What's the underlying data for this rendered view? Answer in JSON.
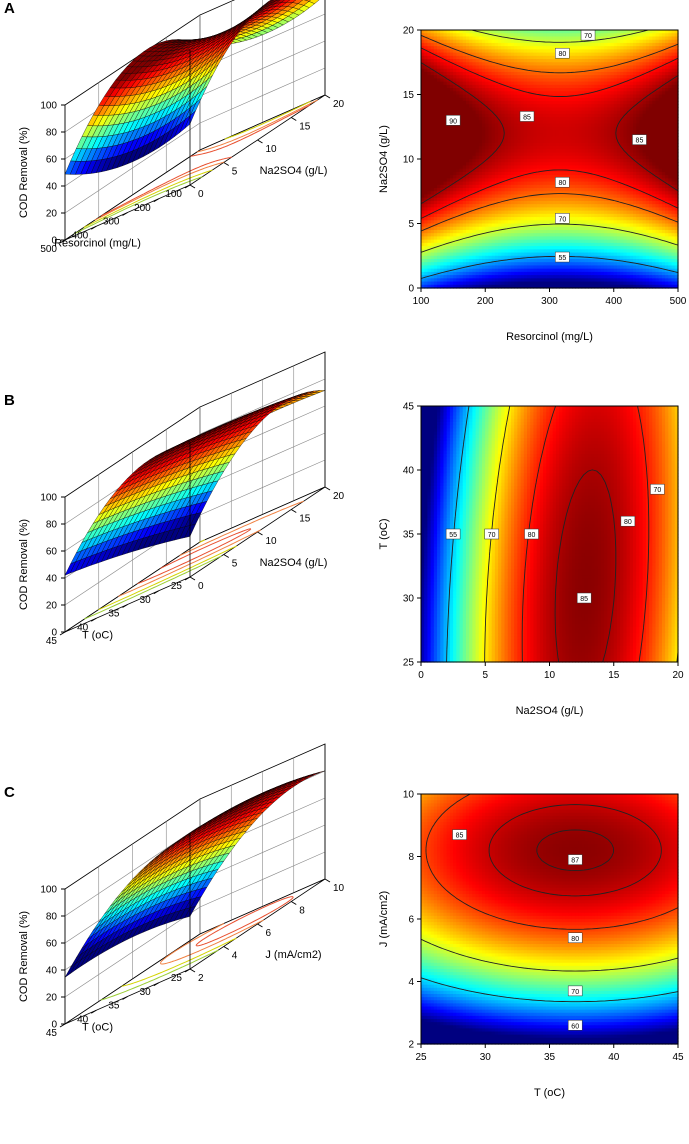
{
  "colors": {
    "axis": "#000000",
    "grid": "#888888",
    "contour": "#222222"
  },
  "chart_data": [
    {
      "panel": "A",
      "type": "surface3d",
      "zlabel": "COD Removal (%)",
      "zticks": [
        "0",
        "20",
        "40",
        "60",
        "80",
        "100"
      ],
      "xlabel": "Resorcinol (mg/L)",
      "xticks": [
        "500",
        "400",
        "300",
        "200",
        "100"
      ],
      "ylabel": "Na2SO4 (g/L)",
      "yticks": [
        "0",
        "5",
        "10",
        "15",
        "20"
      ],
      "xrange": [
        100,
        500
      ],
      "yrange": [
        0,
        20
      ],
      "zrange": [
        0,
        100
      ],
      "model": "A"
    },
    {
      "panel": "A",
      "type": "contour",
      "xlabel": "Resorcinol (mg/L)",
      "ylabel": "Na2SO4 (g/L)",
      "xticks": [
        "100",
        "200",
        "300",
        "400",
        "500"
      ],
      "yticks": [
        "0",
        "5",
        "10",
        "15",
        "20"
      ],
      "xrange": [
        100,
        500
      ],
      "yrange": [
        0,
        20
      ],
      "contour_labels": [
        "90",
        "85",
        "85",
        "80",
        "80",
        "70",
        "70",
        "55"
      ],
      "model": "A"
    },
    {
      "panel": "B",
      "type": "surface3d",
      "zlabel": "COD Removal (%)",
      "zticks": [
        "0",
        "20",
        "40",
        "60",
        "80",
        "100"
      ],
      "xlabel": "T (oC)",
      "xticks": [
        "45",
        "40",
        "35",
        "30",
        "25"
      ],
      "ylabel": "Na2SO4 (g/L)",
      "yticks": [
        "0",
        "5",
        "10",
        "15",
        "20"
      ],
      "xrange": [
        25,
        45
      ],
      "yrange": [
        0,
        20
      ],
      "zrange": [
        0,
        100
      ],
      "model": "B"
    },
    {
      "panel": "B",
      "type": "contour",
      "xlabel": "Na2SO4 (g/L)",
      "ylabel": "T (oC)",
      "xticks": [
        "0",
        "5",
        "10",
        "15",
        "20"
      ],
      "yticks": [
        "25",
        "30",
        "35",
        "40",
        "45"
      ],
      "xrange": [
        0,
        20
      ],
      "yrange": [
        25,
        45
      ],
      "contour_labels": [
        "55",
        "70",
        "80",
        "85",
        "80",
        "70"
      ],
      "model": "B"
    },
    {
      "panel": "C",
      "type": "surface3d",
      "zlabel": "COD Removal (%)",
      "zticks": [
        "0",
        "20",
        "40",
        "60",
        "80",
        "100"
      ],
      "xlabel": "T (oC)",
      "xticks": [
        "45",
        "40",
        "35",
        "30",
        "25"
      ],
      "ylabel": "J (mA/cm2)",
      "yticks": [
        "2",
        "4",
        "6",
        "8",
        "10"
      ],
      "xrange": [
        25,
        45
      ],
      "yrange": [
        2,
        10
      ],
      "zrange": [
        0,
        100
      ],
      "model": "C"
    },
    {
      "panel": "C",
      "type": "contour",
      "xlabel": "T (oC)",
      "ylabel": "J (mA/cm2)",
      "xticks": [
        "25",
        "30",
        "35",
        "40",
        "45"
      ],
      "yticks": [
        "2",
        "4",
        "6",
        "8",
        "10"
      ],
      "xrange": [
        25,
        45
      ],
      "yrange": [
        2,
        10
      ],
      "contour_labels": [
        "85",
        "87",
        "80",
        "70",
        "60"
      ],
      "model": "C"
    }
  ]
}
